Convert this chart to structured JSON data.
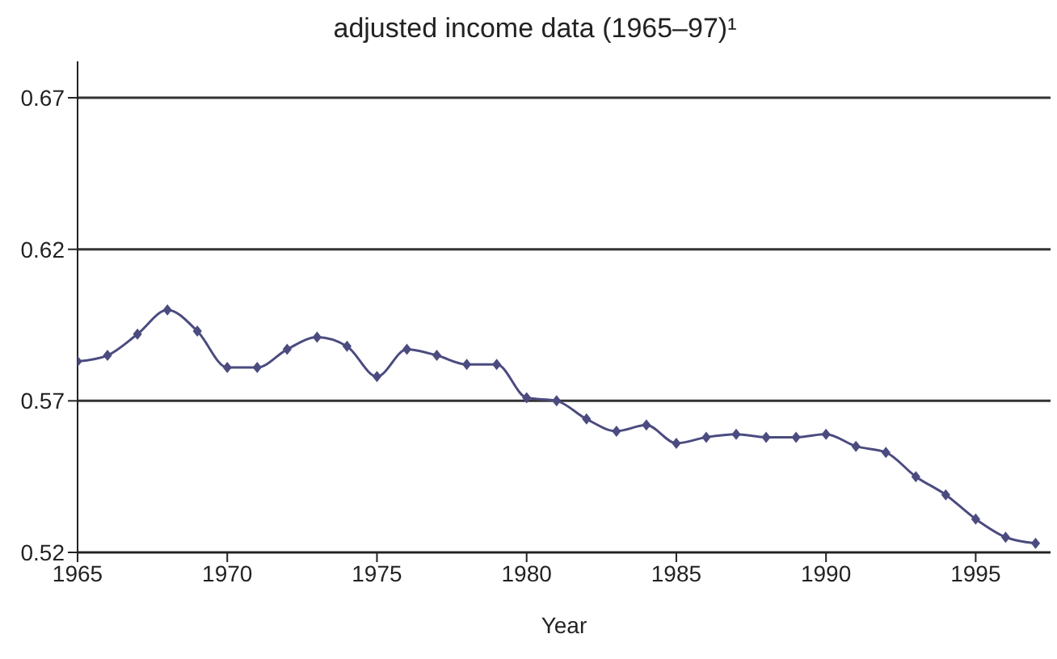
{
  "chart_data": {
    "type": "line",
    "title": "adjusted income data (1965–97)¹",
    "xlabel": "Year",
    "x": [
      1965,
      1966,
      1967,
      1968,
      1969,
      1970,
      1971,
      1972,
      1973,
      1974,
      1975,
      1976,
      1977,
      1978,
      1979,
      1980,
      1981,
      1982,
      1983,
      1984,
      1985,
      1986,
      1987,
      1988,
      1989,
      1990,
      1991,
      1992,
      1993,
      1994,
      1995,
      1996,
      1997
    ],
    "series": [
      {
        "color": "#4b4b80",
        "values": [
          0.583,
          0.585,
          0.592,
          0.6,
          0.593,
          0.581,
          0.581,
          0.587,
          0.591,
          0.588,
          0.578,
          0.587,
          0.585,
          0.582,
          0.582,
          0.571,
          0.57,
          0.564,
          0.56,
          0.562,
          0.556,
          0.558,
          0.559,
          0.558,
          0.558,
          0.559,
          0.555,
          0.553,
          0.545,
          0.539,
          0.531,
          0.525,
          0.523
        ]
      }
    ],
    "xlim": [
      1965,
      1997.5
    ],
    "xticks": [
      1965,
      1970,
      1975,
      1980,
      1985,
      1990,
      1995
    ],
    "ylim": [
      0.52,
      0.682
    ],
    "yticks": [
      0.52,
      0.57,
      0.62,
      0.67
    ],
    "grid": "y",
    "marker": "diamond",
    "line_style": "solid",
    "legend": false
  }
}
